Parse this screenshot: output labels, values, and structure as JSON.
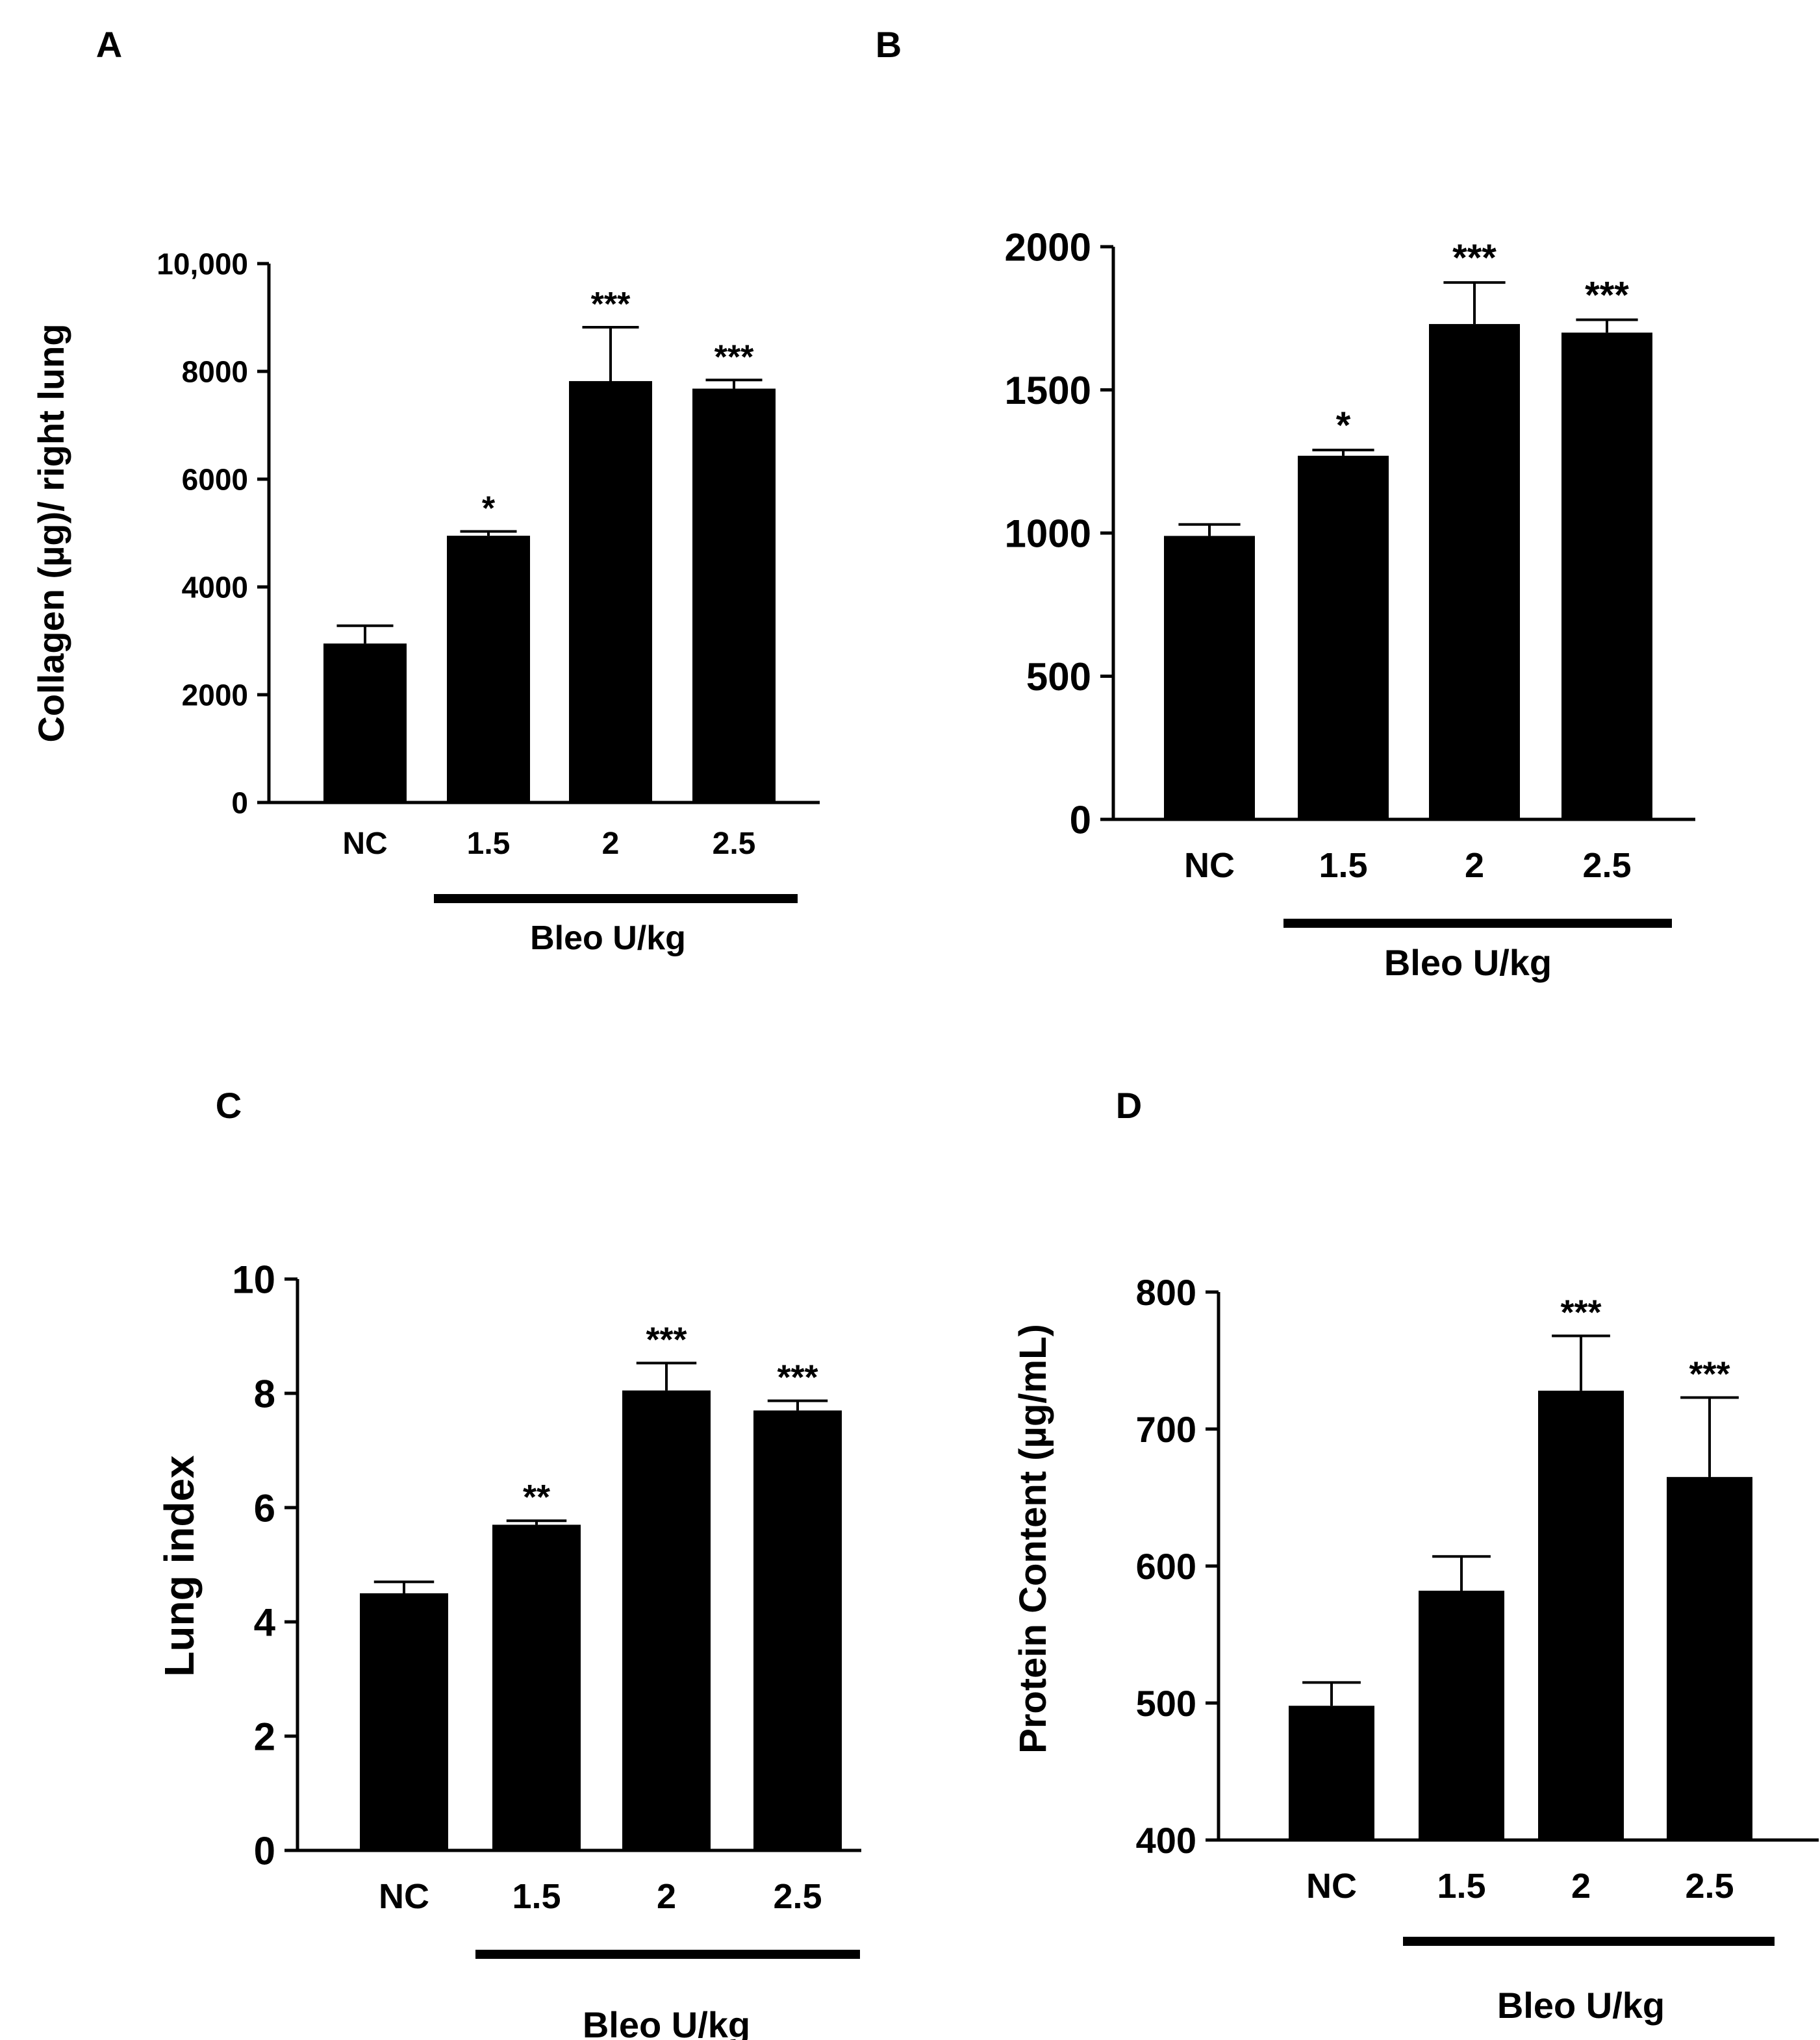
{
  "figure": {
    "description_free": true
  },
  "chart_data": [
    {
      "id": "A",
      "panel_label": "A",
      "type": "bar",
      "title": "",
      "categories": [
        "NC",
        "1.5",
        "2",
        "2.5"
      ],
      "values": [
        2950,
        4950,
        7820,
        7680
      ],
      "errors": [
        330,
        80,
        1000,
        160
      ],
      "significance": [
        "",
        "*",
        "***",
        "***"
      ],
      "xlabel": "",
      "ylabel": "Collagen (µg)/ right lung",
      "ylim": [
        0,
        10000
      ],
      "yticks": [
        0,
        2000,
        4000,
        6000,
        8000,
        10000
      ],
      "ytick_labels": [
        "0",
        "2000",
        "4000",
        "6000",
        "8000",
        "10,000"
      ],
      "group_bracket": {
        "label": "Bleo U/kg",
        "from": "1.5",
        "to": "2.5"
      },
      "bar_color": "#000000",
      "grid": false
    },
    {
      "id": "B",
      "panel_label": "B",
      "type": "bar",
      "title": "",
      "categories": [
        "NC",
        "1.5",
        "2",
        "2.5"
      ],
      "values": [
        990,
        1270,
        1730,
        1700
      ],
      "errors": [
        40,
        20,
        145,
        45
      ],
      "significance": [
        "",
        "*",
        "***",
        "***"
      ],
      "xlabel": "",
      "ylabel": "",
      "ylim": [
        0,
        2000
      ],
      "yticks": [
        0,
        500,
        1000,
        1500,
        2000
      ],
      "ytick_labels": [
        "0",
        "500",
        "1000",
        "1500",
        "2000"
      ],
      "group_bracket": {
        "label": "Bleo U/kg",
        "from": "1.5",
        "to": "2.5"
      },
      "bar_color": "#000000",
      "grid": false
    },
    {
      "id": "C",
      "panel_label": "C",
      "type": "bar",
      "title": "",
      "categories": [
        "NC",
        "1.5",
        "2",
        "2.5"
      ],
      "values": [
        4.5,
        5.7,
        8.05,
        7.7
      ],
      "errors": [
        0.2,
        0.07,
        0.48,
        0.17
      ],
      "significance": [
        "",
        "**",
        "***",
        "***"
      ],
      "xlabel": "",
      "ylabel": "Lung index",
      "ylim": [
        0,
        10
      ],
      "yticks": [
        0,
        2,
        4,
        6,
        8,
        10
      ],
      "ytick_labels": [
        "0",
        "2",
        "4",
        "6",
        "8",
        "10"
      ],
      "group_bracket": {
        "label": "Bleo U/kg",
        "from": "1.5",
        "to": "2.5"
      },
      "bar_color": "#000000",
      "grid": false
    },
    {
      "id": "D",
      "panel_label": "D",
      "type": "bar",
      "title": "",
      "categories": [
        "NC",
        "1.5",
        "2",
        "2.5"
      ],
      "values": [
        498,
        582,
        728,
        665
      ],
      "errors": [
        17,
        25,
        40,
        58
      ],
      "significance": [
        "",
        "",
        "***",
        "***"
      ],
      "xlabel": "",
      "ylabel": "Protein Content (µg/mL)",
      "ylim": [
        400,
        800
      ],
      "yticks": [
        400,
        500,
        600,
        700,
        800
      ],
      "ytick_labels": [
        "400",
        "500",
        "600",
        "700",
        "800"
      ],
      "group_bracket": {
        "label": "Bleo U/kg",
        "from": "1.5",
        "to": "2.5"
      },
      "bar_color": "#000000",
      "grid": false
    }
  ]
}
